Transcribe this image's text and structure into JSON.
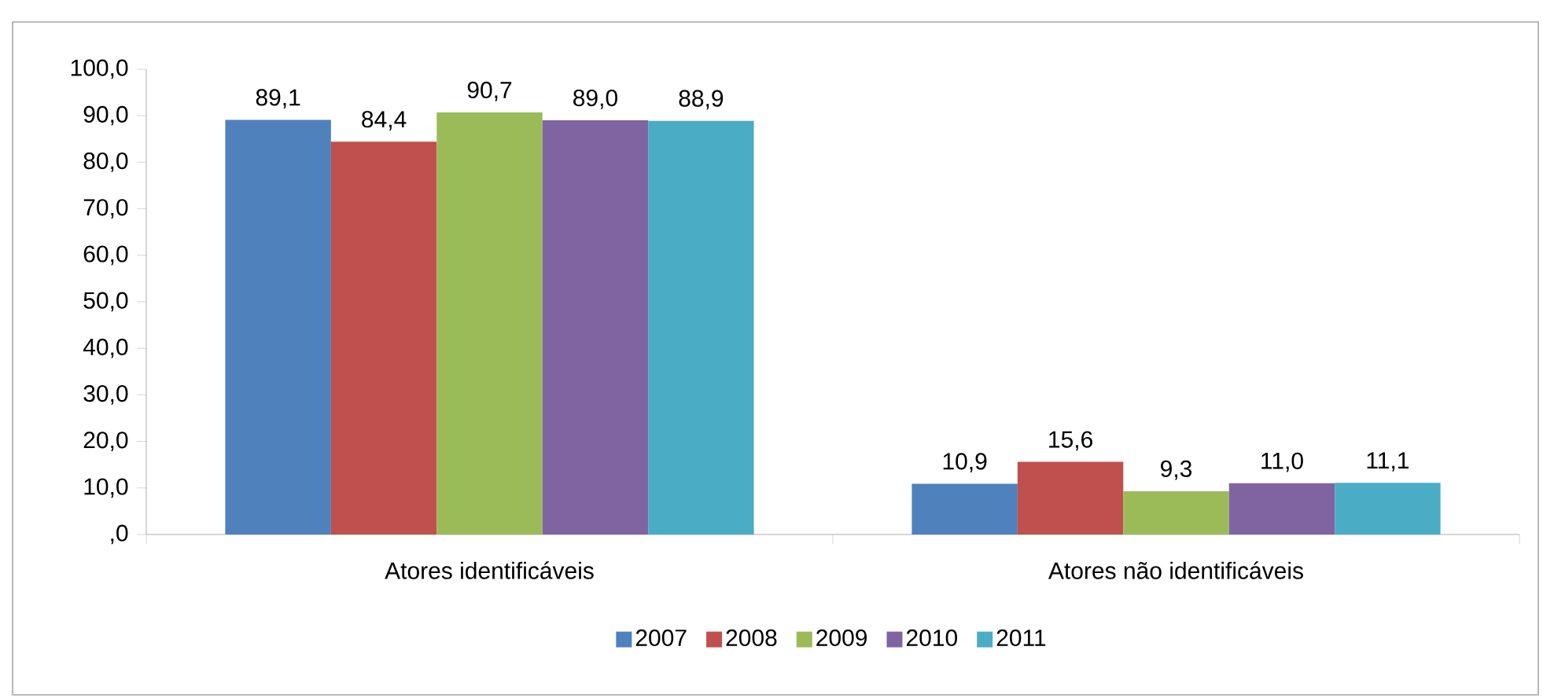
{
  "chart_data": {
    "type": "bar",
    "categories": [
      "Atores identificáveis",
      "Atores não identificáveis"
    ],
    "series": [
      {
        "name": "2007",
        "color": "#4f81bd",
        "values": [
          89.1,
          10.9
        ],
        "value_labels": [
          "89,1",
          "10,9"
        ]
      },
      {
        "name": "2008",
        "color": "#c0504d",
        "values": [
          84.4,
          15.6
        ],
        "value_labels": [
          "84,4",
          "15,6"
        ]
      },
      {
        "name": "2009",
        "color": "#9bbb59",
        "values": [
          90.7,
          9.3
        ],
        "value_labels": [
          "90,7",
          "9,3"
        ]
      },
      {
        "name": "2010",
        "color": "#8064a2",
        "values": [
          89.0,
          11.0
        ],
        "value_labels": [
          "89,0",
          "11,0"
        ]
      },
      {
        "name": "2011",
        "color": "#4bacc6",
        "values": [
          88.9,
          11.1
        ],
        "value_labels": [
          "88,9",
          "11,1"
        ]
      }
    ],
    "ylim": [
      0,
      100
    ],
    "yticks": [
      {
        "value": 0,
        "label": ",0"
      },
      {
        "value": 10,
        "label": "10,0"
      },
      {
        "value": 20,
        "label": "20,0"
      },
      {
        "value": 30,
        "label": "30,0"
      },
      {
        "value": 40,
        "label": "40,0"
      },
      {
        "value": 50,
        "label": "50,0"
      },
      {
        "value": 60,
        "label": "60,0"
      },
      {
        "value": 70,
        "label": "70,0"
      },
      {
        "value": 80,
        "label": "80,0"
      },
      {
        "value": 90,
        "label": "90,0"
      },
      {
        "value": 100,
        "label": "100,0"
      }
    ],
    "grid": false,
    "legend": "bottom"
  }
}
